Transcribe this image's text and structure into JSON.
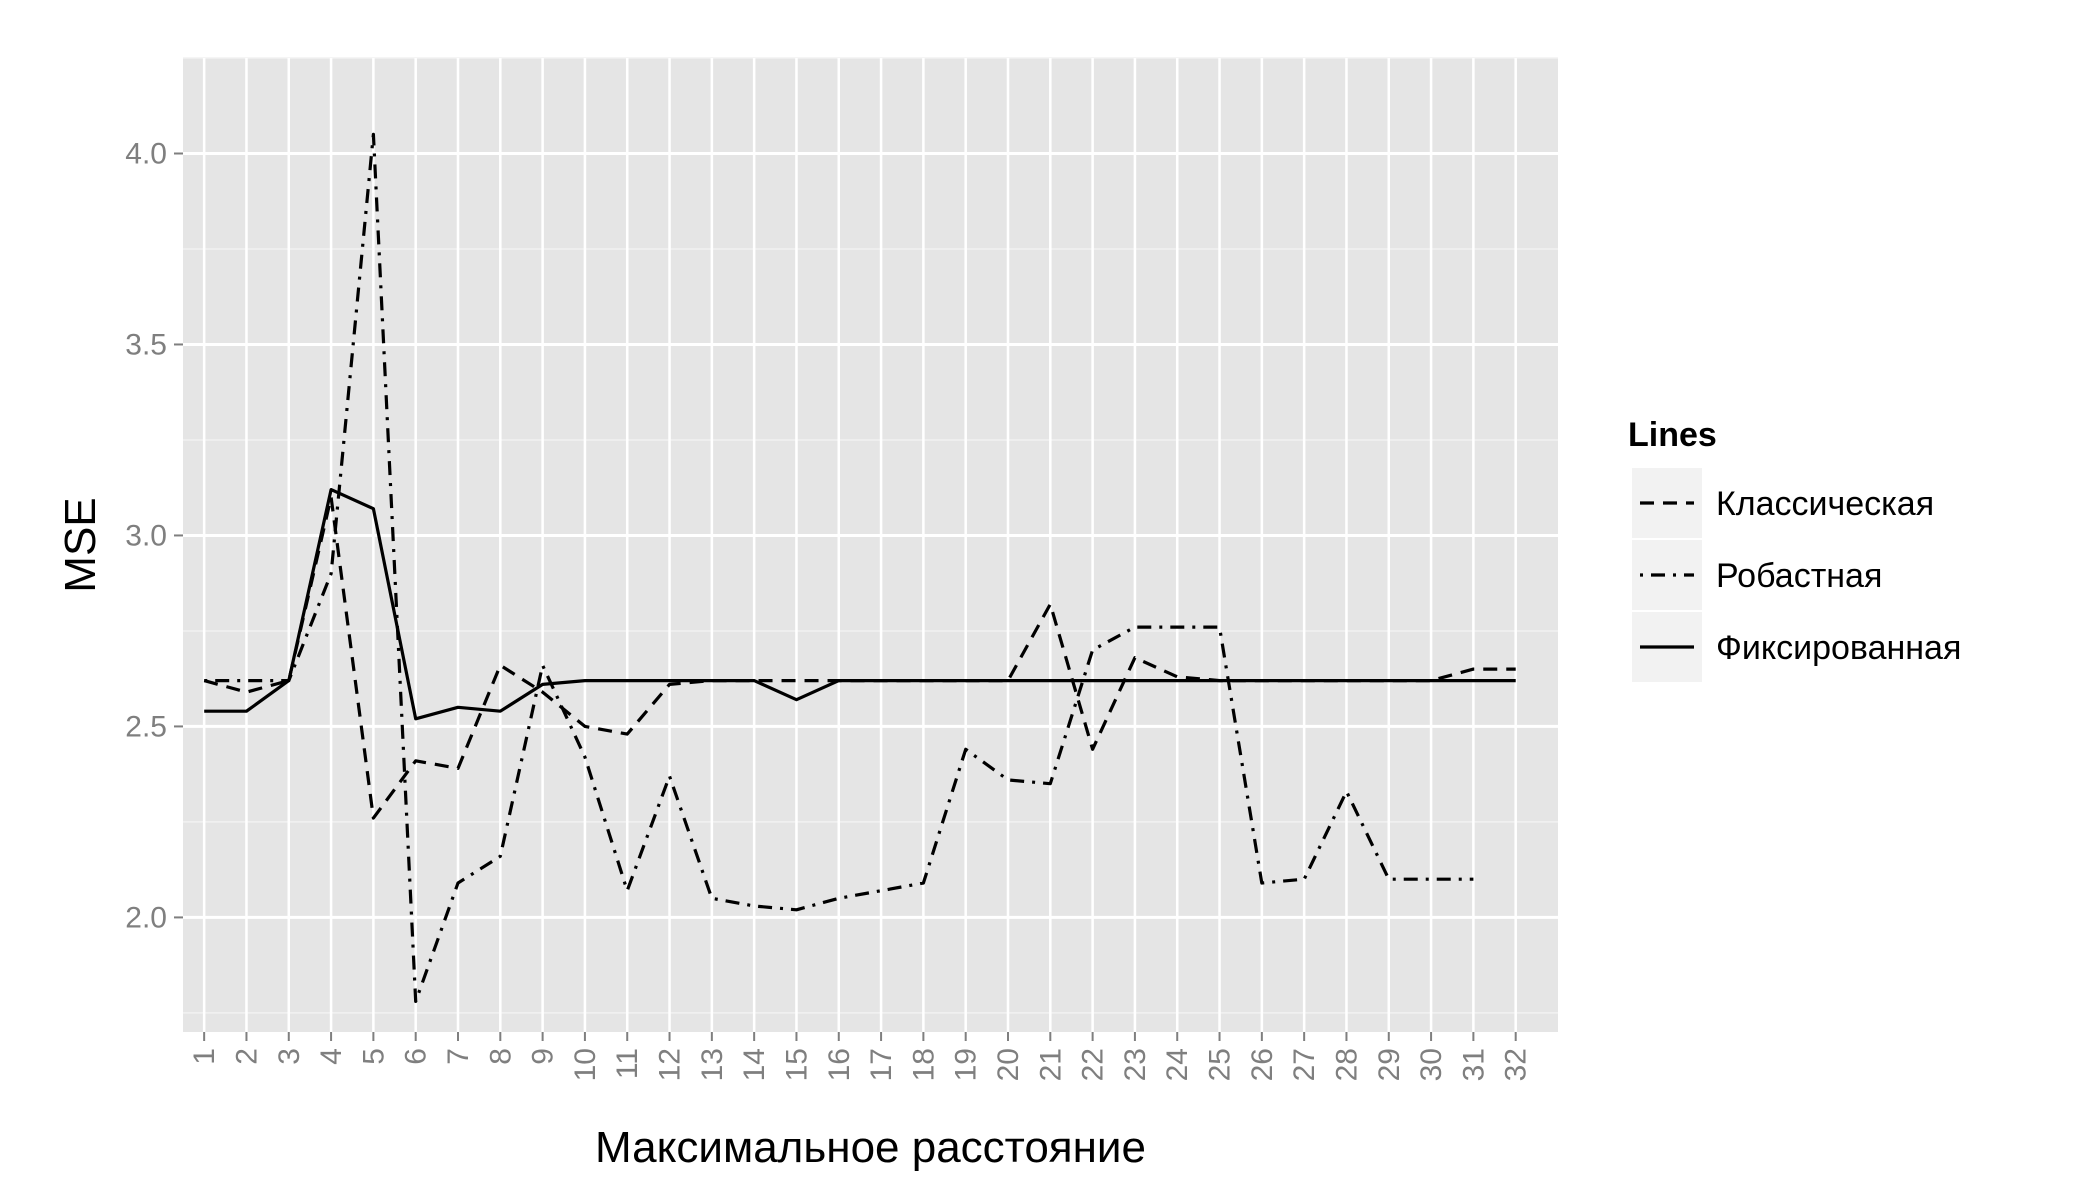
{
  "chart_data": {
    "type": "line",
    "xlabel": "Максимальное расстояние",
    "ylabel": "MSE",
    "categories": [
      "1",
      "2",
      "3",
      "4",
      "5",
      "6",
      "7",
      "8",
      "9",
      "10",
      "11",
      "12",
      "13",
      "14",
      "15",
      "16",
      "17",
      "18",
      "19",
      "20",
      "21",
      "22",
      "23",
      "24",
      "25",
      "26",
      "27",
      "28",
      "29",
      "30",
      "31",
      "32"
    ],
    "y_ticks": [
      "2.0",
      "2.5",
      "3.0",
      "3.5",
      "4.0"
    ],
    "ylim": [
      1.7,
      4.25
    ],
    "grid": true,
    "background_color": "#e5e5e5",
    "grid_color": "#ffffff",
    "legend": {
      "title": "Lines",
      "position": "right",
      "entries": [
        {
          "label": "Классическая",
          "dash": "dashed"
        },
        {
          "label": "Робастная",
          "dash": "dotdash"
        },
        {
          "label": "Фиксированная",
          "dash": "solid"
        }
      ]
    },
    "series": [
      {
        "name": "Классическая",
        "dash": "dashed",
        "x": [
          1,
          2,
          3,
          4,
          5,
          6,
          7,
          8,
          9,
          10,
          11,
          12,
          13,
          14,
          15,
          16,
          17,
          18,
          19,
          20,
          21,
          22,
          23,
          24,
          25,
          26,
          27,
          28,
          29,
          30,
          31,
          32
        ],
        "values": [
          2.62,
          2.59,
          2.62,
          3.1,
          2.26,
          2.41,
          2.39,
          2.66,
          2.59,
          2.5,
          2.48,
          2.61,
          2.62,
          2.62,
          2.62,
          2.62,
          2.62,
          2.62,
          2.62,
          2.62,
          2.82,
          2.44,
          2.68,
          2.63,
          2.62,
          2.62,
          2.62,
          2.62,
          2.62,
          2.62,
          2.65,
          2.65
        ]
      },
      {
        "name": "Робастная",
        "dash": "dotdash",
        "x": [
          1,
          2,
          3,
          4,
          5,
          6,
          7,
          8,
          9,
          10,
          11,
          12,
          13,
          14,
          15,
          16,
          17,
          18,
          19,
          20,
          21,
          22,
          23,
          24,
          25,
          26,
          27,
          28,
          29,
          30,
          31
        ],
        "values": [
          2.62,
          2.62,
          2.62,
          2.9,
          4.05,
          1.78,
          2.09,
          2.16,
          2.66,
          2.42,
          2.07,
          2.37,
          2.05,
          2.03,
          2.02,
          2.05,
          2.07,
          2.09,
          2.44,
          2.36,
          2.35,
          2.7,
          2.76,
          2.76,
          2.76,
          2.09,
          2.1,
          2.33,
          2.1,
          2.1,
          2.1
        ]
      },
      {
        "name": "Фиксированная",
        "dash": "solid",
        "x": [
          1,
          2,
          3,
          4,
          5,
          6,
          7,
          8,
          9,
          10,
          11,
          12,
          13,
          14,
          15,
          16,
          17,
          18,
          19,
          20,
          21,
          22,
          23,
          24,
          25,
          26,
          27,
          28,
          29,
          30,
          31,
          32
        ],
        "values": [
          2.54,
          2.54,
          2.62,
          3.12,
          3.07,
          2.52,
          2.55,
          2.54,
          2.61,
          2.62,
          2.62,
          2.62,
          2.62,
          2.62,
          2.57,
          2.62,
          2.62,
          2.62,
          2.62,
          2.62,
          2.62,
          2.62,
          2.62,
          2.62,
          2.62,
          2.62,
          2.62,
          2.62,
          2.62,
          2.62,
          2.62,
          2.62
        ]
      }
    ]
  }
}
